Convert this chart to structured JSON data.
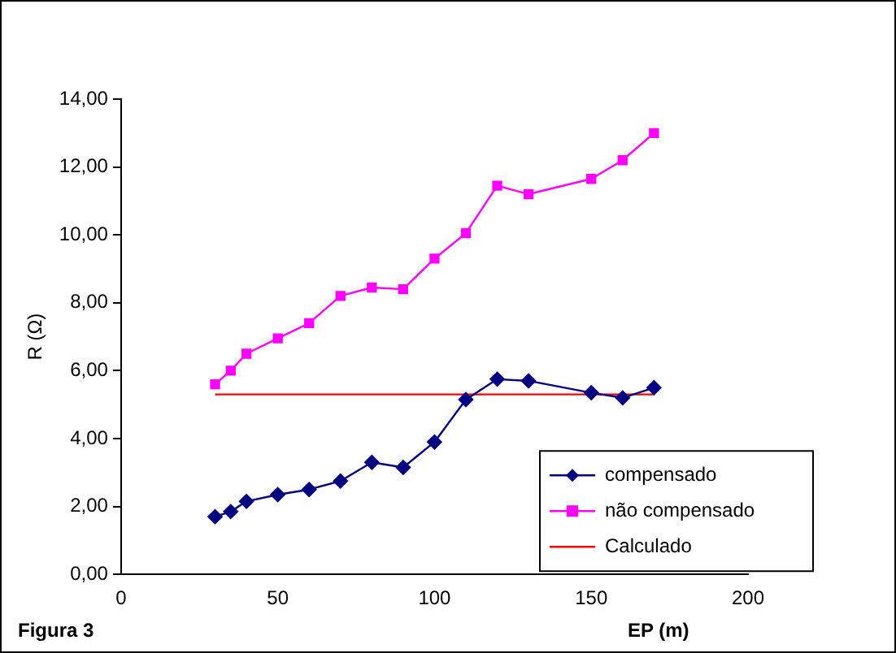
{
  "chart_data": {
    "type": "line",
    "xlabel": "EP (m)",
    "ylabel": "R (Ω)",
    "annotations": [
      "Figura 3"
    ],
    "xlim": [
      0,
      200
    ],
    "xticks": [
      0,
      50,
      100,
      150,
      200
    ],
    "ylim": [
      0,
      14
    ],
    "yticks": [
      {
        "value": 0,
        "label": "0,00"
      },
      {
        "value": 2,
        "label": "2,00"
      },
      {
        "value": 4,
        "label": "4,00"
      },
      {
        "value": 6,
        "label": "6,00"
      },
      {
        "value": 8,
        "label": "8,00"
      },
      {
        "value": 10,
        "label": "10,00"
      },
      {
        "value": 12,
        "label": "12,00"
      },
      {
        "value": 14,
        "label": "14,00"
      }
    ],
    "grid": false,
    "legend": "bottom right",
    "series": [
      {
        "name": "compensado",
        "color": "#000080",
        "marker": "diamond",
        "x": [
          30,
          35,
          40,
          50,
          60,
          70,
          80,
          90,
          100,
          110,
          120,
          130,
          150,
          160,
          170
        ],
        "values": [
          1.7,
          1.85,
          2.15,
          2.35,
          2.5,
          2.75,
          3.3,
          3.15,
          3.9,
          5.15,
          5.75,
          5.7,
          5.35,
          5.2,
          5.5
        ]
      },
      {
        "name": "não compensado",
        "color": "#ff00ff",
        "marker": "square",
        "x": [
          30,
          35,
          40,
          50,
          60,
          70,
          80,
          90,
          100,
          110,
          120,
          130,
          150,
          160,
          170
        ],
        "values": [
          5.6,
          6.0,
          6.5,
          6.95,
          7.4,
          8.2,
          8.45,
          8.4,
          9.3,
          10.05,
          11.45,
          11.2,
          11.65,
          12.2,
          13.0
        ]
      },
      {
        "name": "Calculado",
        "color": "#ff0000",
        "marker": "none",
        "x": [
          30,
          170
        ],
        "values": [
          5.3,
          5.3
        ]
      }
    ]
  }
}
